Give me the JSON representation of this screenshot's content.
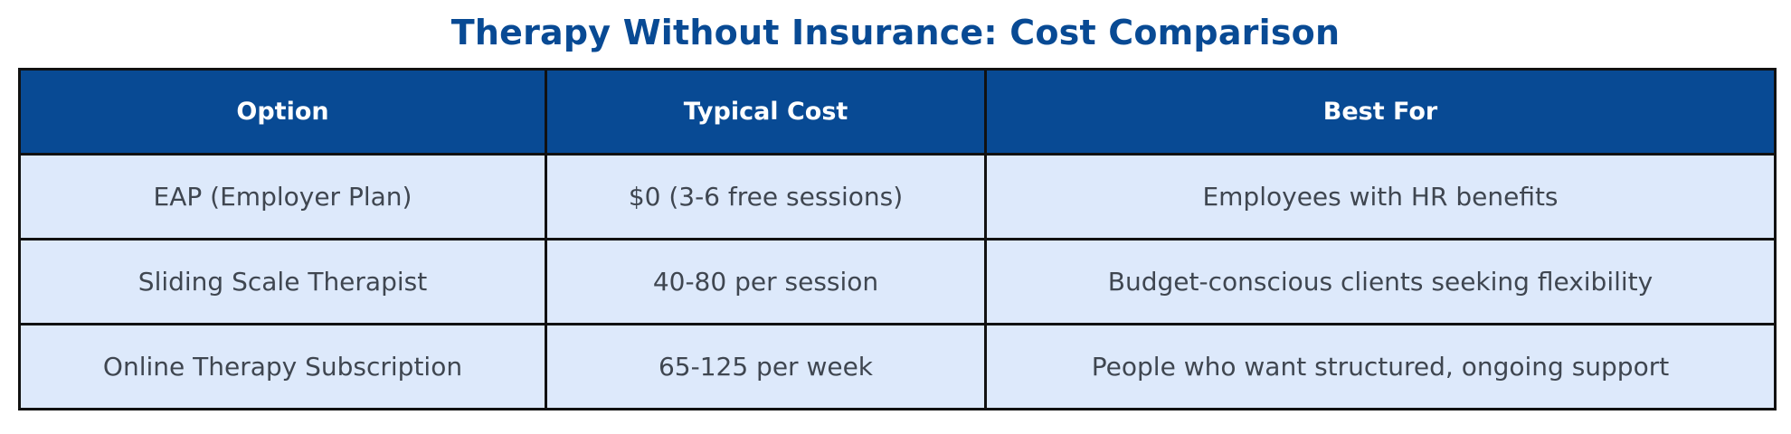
{
  "page": {
    "title": "Therapy Without Insurance: Cost Comparison"
  },
  "colors": {
    "title": "#084a94",
    "header_bg": "#084a94",
    "header_text": "#ffffff",
    "row_bg": "#dde9fb",
    "cell_text": "#3f4650",
    "border": "#111111"
  },
  "table": {
    "headers": [
      "Option",
      "Typical Cost",
      "Best For"
    ],
    "rows": [
      [
        "EAP (Employer Plan)",
        "$0 (3-6 free sessions)",
        "Employees with HR benefits"
      ],
      [
        "Sliding Scale Therapist",
        "40-80 per session",
        "Budget-conscious clients seeking flexibility"
      ],
      [
        "Online Therapy Subscription",
        "65-125 per week",
        "People who want structured, ongoing support"
      ]
    ]
  }
}
